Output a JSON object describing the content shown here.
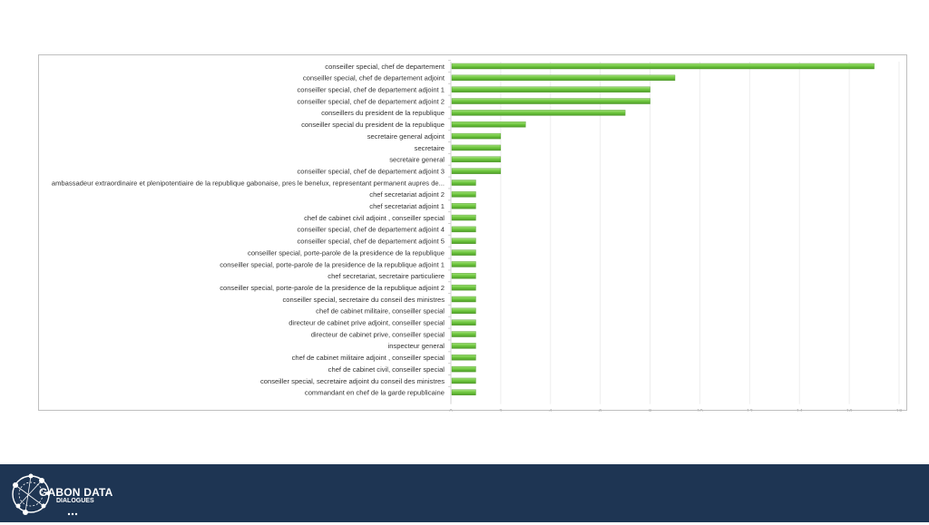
{
  "chart_data": {
    "type": "bar",
    "orientation": "horizontal",
    "categories": [
      "conseiller special, chef de departement",
      "conseiller special, chef de departement adjoint",
      "conseiller special, chef de departement adjoint 1",
      "conseiller special, chef de departement adjoint 2",
      "conseillers du president de la republique",
      "conseiller special du president de la republique",
      "secretaire general adjoint",
      "secretaire",
      "secretaire general",
      "conseiller special, chef de departement adjoint 3",
      "ambassadeur extraordinaire et plenipotentiaire de la republique gabonaise, pres le benelux, representant permanent aupres de...",
      "chef secretariat adjoint 2",
      "chef secretariat adjoint 1",
      "chef de cabinet civil adjoint , conseiller special",
      "conseiller special, chef de departement adjoint 4",
      "conseiller special, chef de departement adjoint 5",
      "conseiller special, porte-parole de la presidence de la republique",
      "conseiller special, porte-parole de la presidence de la republique adjoint 1",
      "chef secretariat, secretaire particuliere",
      "conseiller special, porte-parole de la presidence de la republique adjoint 2",
      "conseiller special, secretaire du conseil des ministres",
      "chef de cabinet militaire, conseiller special",
      "directeur de cabinet prive adjoint, conseiller special",
      "directeur de cabinet prive, conseiller special",
      "inspecteur general",
      "chef de cabinet militaire adjoint , conseiller special",
      "chef de cabinet civil, conseiller special",
      "conseiller special, secretaire adjoint du conseil des ministres",
      "commandant en chef de la garde republicaine"
    ],
    "values": [
      17,
      9,
      8,
      8,
      7,
      3,
      2,
      2,
      2,
      2,
      1,
      1,
      1,
      1,
      1,
      1,
      1,
      1,
      1,
      1,
      1,
      1,
      1,
      1,
      1,
      1,
      1,
      1,
      1
    ],
    "xlim": [
      0,
      18
    ],
    "xticks": [
      "0",
      "2",
      "4",
      "6",
      "8",
      "10",
      "12",
      "14",
      "16",
      "18"
    ],
    "grid": true,
    "legend": "none",
    "bar_color": "#6cc63c",
    "bar_color_light": "#a3e07a",
    "bar_color_dark": "#4f9a2a"
  },
  "footer": {
    "logo_main": "GABON DATA",
    "logo_sub": "DIALOGUES",
    "background": "#1e3553"
  }
}
